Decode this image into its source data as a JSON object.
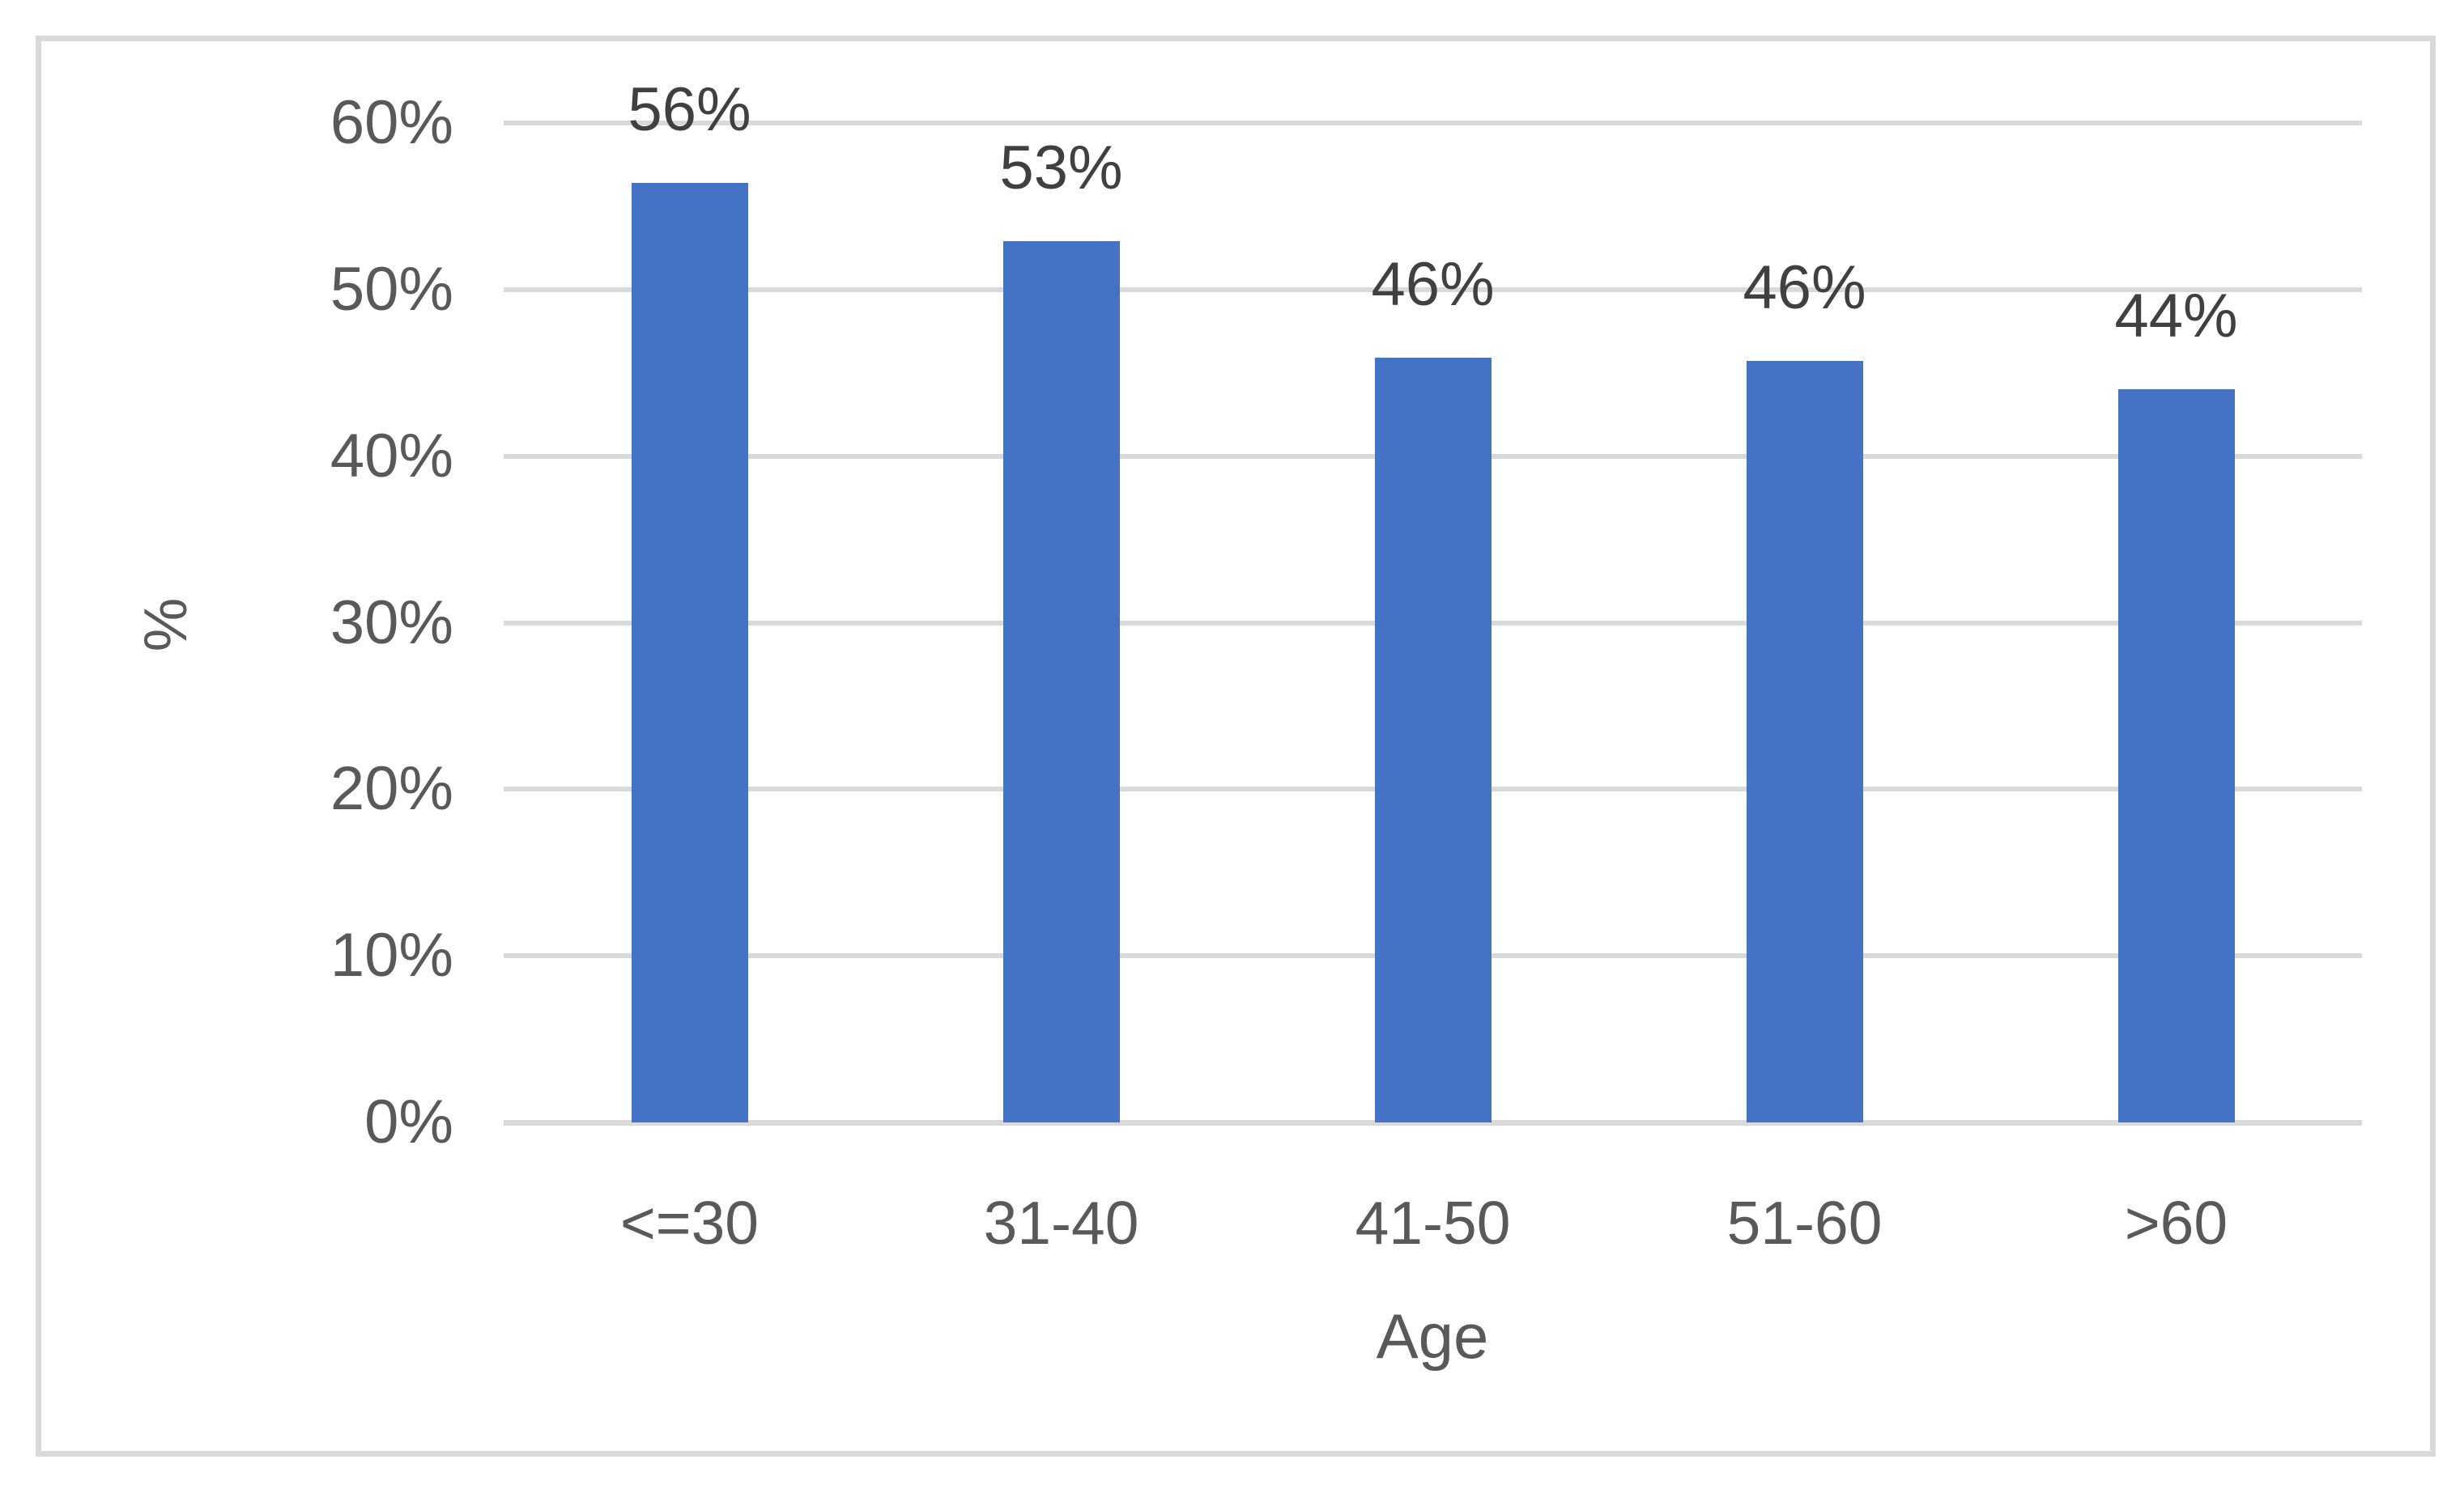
{
  "chart_data": {
    "type": "bar",
    "title": "",
    "categories": [
      "<=30",
      "31-40",
      "41-50",
      "51-60",
      ">60"
    ],
    "values": [
      56,
      53,
      46,
      46,
      44
    ],
    "data_labels": [
      "56%",
      "53%",
      "46%",
      "46%",
      "44%"
    ],
    "values_precise": [
      56.4,
      52.9,
      45.9,
      45.7,
      44.0
    ],
    "xlabel": "Age",
    "ylabel": "%",
    "ylim": [
      0,
      60
    ],
    "ytick_step": 10,
    "yticks": [
      {
        "value": 0,
        "label": "0%"
      },
      {
        "value": 10,
        "label": "10%"
      },
      {
        "value": 20,
        "label": "20%"
      },
      {
        "value": 30,
        "label": "30%"
      },
      {
        "value": 40,
        "label": "40%"
      },
      {
        "value": 50,
        "label": "50%"
      },
      {
        "value": 60,
        "label": "60%"
      }
    ],
    "grid": true,
    "legend": "none",
    "colors": {
      "bar": "#4472C4",
      "gridline": "#D9D9D9",
      "frame_border": "#D9D9D9",
      "axis_text": "#595959",
      "data_label_text": "#404040",
      "background": "#FFFFFF"
    }
  }
}
